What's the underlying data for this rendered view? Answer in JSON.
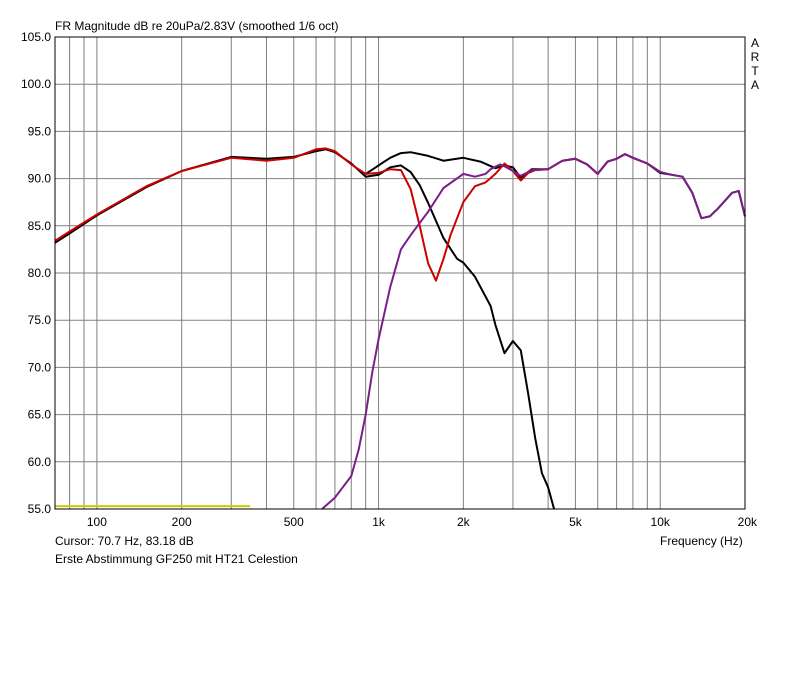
{
  "chart_data": {
    "type": "line",
    "title": "FR Magnitude dB re 20uPa/2.83V (smoothed 1/6 oct)",
    "brand": "ARTA",
    "xlabel": "Frequency (Hz)",
    "ylabel": "",
    "xscale": "log",
    "xlim": [
      71,
      20000
    ],
    "ylim": [
      55,
      105
    ],
    "x_ticks": [
      {
        "v": 100,
        "label": "100"
      },
      {
        "v": 200,
        "label": "200"
      },
      {
        "v": 500,
        "label": "500"
      },
      {
        "v": 1000,
        "label": "1k"
      },
      {
        "v": 2000,
        "label": "2k"
      },
      {
        "v": 5000,
        "label": "5k"
      },
      {
        "v": 10000,
        "label": "10k"
      },
      {
        "v": 20000,
        "label": "20k"
      }
    ],
    "y_ticks": [
      "55.0",
      "60.0",
      "65.0",
      "70.0",
      "75.0",
      "80.0",
      "85.0",
      "90.0",
      "95.0",
      "100.0",
      "105.0"
    ],
    "grid": true,
    "cursor_text": "Cursor: 70.7 Hz, 83.18 dB",
    "note": "Erste Abstimmung GF250 mit HT21 Celestion",
    "reference_line": {
      "x": [
        71,
        350
      ],
      "y": 55.3,
      "color": "#cccc00"
    },
    "series": [
      {
        "color": "#000000",
        "x": [
          71,
          80,
          100,
          150,
          200,
          300,
          400,
          500,
          600,
          650,
          700,
          800,
          900,
          1000,
          1100,
          1200,
          1300,
          1400,
          1500,
          1700,
          1900,
          2000,
          2200,
          2500,
          2600,
          2800,
          3000,
          3200,
          3400,
          3600,
          3800,
          4000,
          4200
        ],
        "y": [
          83.2,
          84.2,
          86.1,
          89.1,
          90.8,
          92.3,
          92.1,
          92.3,
          92.9,
          93.1,
          92.8,
          91.6,
          90.2,
          90.4,
          91.2,
          91.4,
          90.7,
          89.3,
          87.4,
          83.7,
          81.5,
          81.1,
          79.6,
          76.5,
          74.5,
          71.5,
          72.8,
          71.8,
          67.2,
          62.5,
          58.8,
          57.3,
          55.0
        ]
      },
      {
        "color": "#000000",
        "x": [
          900,
          1000,
          1100,
          1200,
          1300,
          1500,
          1700,
          2000,
          2300,
          2600,
          2800,
          3000,
          3200,
          3500,
          4000,
          4500,
          5000,
          5500,
          6000,
          6500,
          7000,
          7500,
          8000,
          9000,
          10000,
          11000,
          12000,
          13000,
          14000,
          15000,
          16000,
          18000,
          19000,
          20000
        ],
        "y": [
          90.5,
          91.4,
          92.2,
          92.7,
          92.8,
          92.4,
          91.9,
          92.2,
          91.8,
          91.1,
          91.4,
          91.2,
          90.1,
          91.0,
          91.0,
          91.9,
          92.1,
          91.5,
          90.5,
          91.8,
          92.1,
          92.6,
          92.2,
          91.6,
          90.6,
          90.4,
          90.2,
          88.5,
          85.8,
          86.0,
          86.8,
          88.5,
          88.7,
          86.0
        ]
      },
      {
        "color": "#cc0000",
        "x": [
          71,
          80,
          100,
          150,
          200,
          300,
          400,
          500,
          600,
          650,
          700,
          800,
          900,
          1000,
          1100,
          1200,
          1300,
          1400,
          1500,
          1600,
          1700,
          1800,
          2000,
          2200,
          2400,
          2600,
          2800,
          3000,
          3200,
          3400,
          3600,
          4000,
          4500,
          5000,
          5500,
          6000,
          6500,
          7000,
          7500,
          8000,
          9000,
          10000
        ],
        "y": [
          83.4,
          84.4,
          86.2,
          89.2,
          90.8,
          92.2,
          91.9,
          92.2,
          93.1,
          93.2,
          92.9,
          91.5,
          90.5,
          90.6,
          91.0,
          90.9,
          88.9,
          85.0,
          81.0,
          79.2,
          81.5,
          84.0,
          87.5,
          89.2,
          89.6,
          90.5,
          91.6,
          90.8,
          89.8,
          90.6,
          90.9,
          91.0,
          91.9,
          92.1,
          91.5,
          90.5,
          91.8,
          92.1,
          92.6,
          92.2,
          91.6,
          90.7
        ]
      },
      {
        "color": "#7a1f8a",
        "x": [
          630,
          700,
          800,
          850,
          900,
          950,
          1000,
          1100,
          1200,
          1300,
          1500,
          1700,
          2000,
          2200,
          2400,
          2500,
          2700,
          2800,
          3000,
          3200,
          3500,
          4000,
          4500,
          5000,
          5500,
          6000,
          6500,
          7000,
          7500,
          8000,
          9000,
          10000,
          11000,
          12000,
          13000,
          14000,
          15000,
          16000,
          18000,
          19000,
          20000
        ],
        "y": [
          55.0,
          56.2,
          58.5,
          61.3,
          65.0,
          69.5,
          73.0,
          78.5,
          82.5,
          84.0,
          86.5,
          89.0,
          90.5,
          90.2,
          90.5,
          91.0,
          91.5,
          91.3,
          90.8,
          90.3,
          90.9,
          91.0,
          91.9,
          92.1,
          91.5,
          90.5,
          91.8,
          92.1,
          92.6,
          92.2,
          91.6,
          90.7,
          90.4,
          90.2,
          88.5,
          85.8,
          86.0,
          86.8,
          88.5,
          88.7,
          86.0
        ]
      }
    ]
  }
}
